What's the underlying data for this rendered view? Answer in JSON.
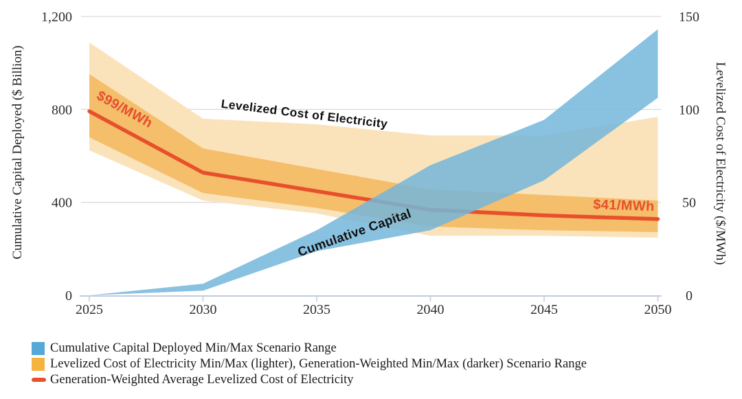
{
  "chart_data": {
    "type": "area",
    "x": [
      2025,
      2030,
      2035,
      2040,
      2045,
      2050
    ],
    "x_ticks": [
      "2025",
      "2030",
      "2035",
      "2040",
      "2045",
      "2050"
    ],
    "left_axis": {
      "label": "Cumulative Capital Deployed ($ Billion)",
      "range": [
        0,
        1200
      ],
      "ticks": [
        0,
        400,
        800,
        1200
      ],
      "tick_labels": [
        "0",
        "400",
        "800",
        "1,200"
      ]
    },
    "right_axis": {
      "label": "Levelized Cost of Electricity ($/MWh)",
      "range": [
        0,
        150
      ],
      "ticks": [
        0,
        50,
        100,
        150
      ],
      "tick_labels": [
        "0",
        "50",
        "100",
        "150"
      ]
    },
    "grid": "horizontal-only",
    "series": [
      {
        "name": "Cumulative Capital Deployed Max",
        "axis": "left",
        "unit": "$ Billion",
        "values": [
          0,
          50,
          280,
          560,
          755,
          1145
        ]
      },
      {
        "name": "Cumulative Capital Deployed Min",
        "axis": "left",
        "unit": "$ Billion",
        "values": [
          0,
          20,
          190,
          280,
          495,
          850
        ]
      },
      {
        "name": "Levelized Cost of Electricity Max (lighter)",
        "axis": "right",
        "unit": "$/MWh",
        "values": [
          136,
          95,
          92,
          86,
          86,
          96
        ]
      },
      {
        "name": "Levelized Cost of Electricity Min (lighter)",
        "axis": "right",
        "unit": "$/MWh",
        "values": [
          78,
          51,
          44,
          32,
          32,
          31
        ]
      },
      {
        "name": "Generation-Weighted Max (darker)",
        "axis": "right",
        "unit": "$/MWh",
        "values": [
          119,
          79,
          68,
          57,
          54,
          51
        ]
      },
      {
        "name": "Generation-Weighted Min (darker)",
        "axis": "right",
        "unit": "$/MWh",
        "values": [
          85,
          55,
          47,
          37,
          35,
          34
        ]
      },
      {
        "name": "Generation-Weighted Average Levelized Cost of Electricity",
        "axis": "right",
        "unit": "$/MWh",
        "values": [
          99,
          66,
          56,
          46,
          43,
          41
        ]
      }
    ],
    "annotations": {
      "start_price": "$99/MWh",
      "lcoe_band": "Levelized Cost of Electricity",
      "capital_band": "Cumulative Capital",
      "end_price": "$41/MWh"
    },
    "legend": {
      "position": "bottom-left",
      "items": [
        {
          "label": "Cumulative Capital Deployed Min/Max Scenario Range",
          "marker": "square",
          "color": "#55A9D7"
        },
        {
          "label": "Levelized Cost of Electricity Min/Max (lighter), Generation-Weighted Min/Max (darker) Scenario Range",
          "marker": "square",
          "color": "#F5B440"
        },
        {
          "label": "Generation-Weighted Average Levelized Cost of Electricity",
          "marker": "dash",
          "color": "#E8502B"
        }
      ]
    }
  },
  "colors": {
    "capital_band": "#74B6DB",
    "lcoe_light_band": "#FAE3BA",
    "lcoe_dark_band": "#F5BE6B",
    "avg_line": "#E8502B",
    "annotation_red": "#E4502E",
    "legend_blue": "#55A9D7",
    "legend_orange": "#F5B440",
    "grid": "#DBDBDB",
    "axis": "#C2CBE2"
  }
}
